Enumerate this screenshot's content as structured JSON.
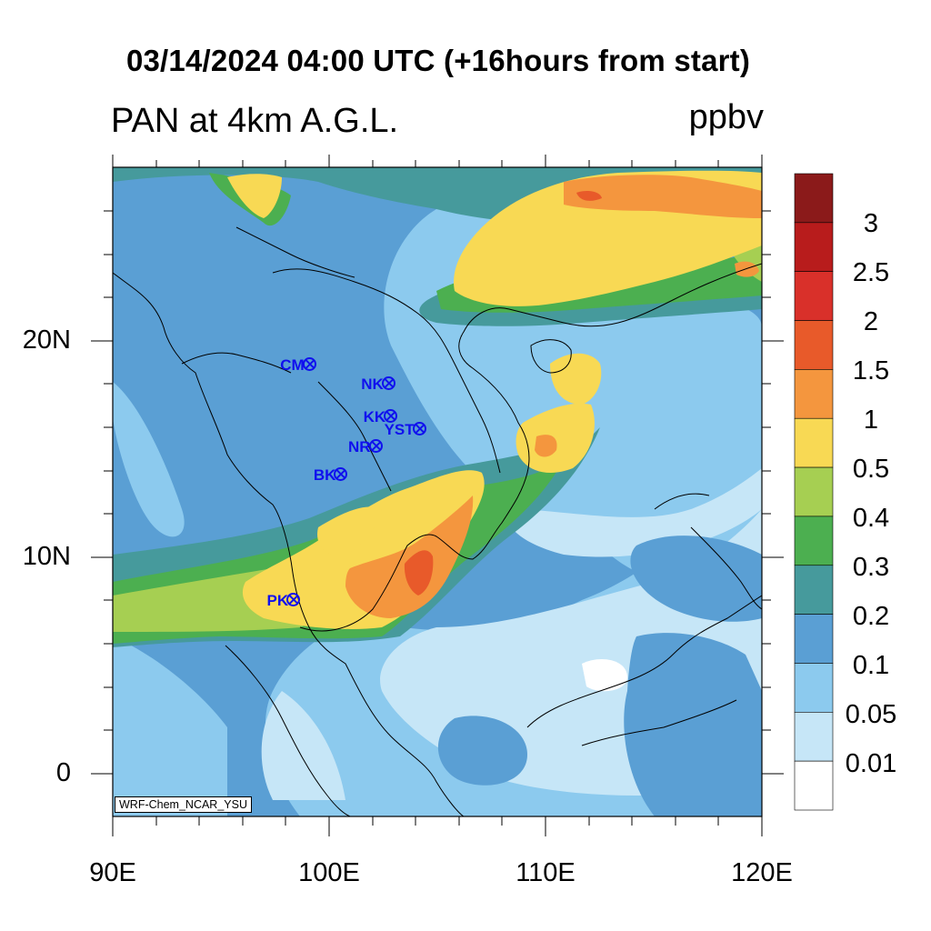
{
  "header": {
    "title": "03/14/2024 04:00 UTC (+16hours from start)",
    "variable": "PAN at 4km A.G.L.",
    "units": "ppbv"
  },
  "axes": {
    "x_ticks": [
      "90E",
      "100E",
      "110E",
      "120E"
    ],
    "y_ticks": [
      "20N",
      "10N",
      "0"
    ],
    "lon_range": [
      90,
      120
    ],
    "lat_range": [
      -2,
      28
    ]
  },
  "colorbar": {
    "levels": [
      "3",
      "2.5",
      "2",
      "1.5",
      "1",
      "0.5",
      "0.4",
      "0.3",
      "0.2",
      "0.1",
      "0.05",
      "0.01"
    ],
    "colors": [
      "#8b1a1a",
      "#b81c1c",
      "#d9302a",
      "#e85a2a",
      "#f4963e",
      "#f8d954",
      "#a6cf52",
      "#4caf50",
      "#469a9c",
      "#5a9fd4",
      "#8ccaee",
      "#c6e6f7",
      "#ffffff"
    ]
  },
  "stations": [
    {
      "name": "CM",
      "lon": 99.0,
      "lat": 18.8
    },
    {
      "name": "NK",
      "lon": 102.7,
      "lat": 17.9
    },
    {
      "name": "KK",
      "lon": 102.8,
      "lat": 16.4
    },
    {
      "name": "YST",
      "lon": 104.1,
      "lat": 15.8
    },
    {
      "name": "NR",
      "lon": 102.1,
      "lat": 15.0
    },
    {
      "name": "BK",
      "lon": 100.5,
      "lat": 13.7
    },
    {
      "name": "PK",
      "lon": 98.3,
      "lat": 7.9
    }
  ],
  "credit": "WRF-Chem_NCAR_YSU"
}
